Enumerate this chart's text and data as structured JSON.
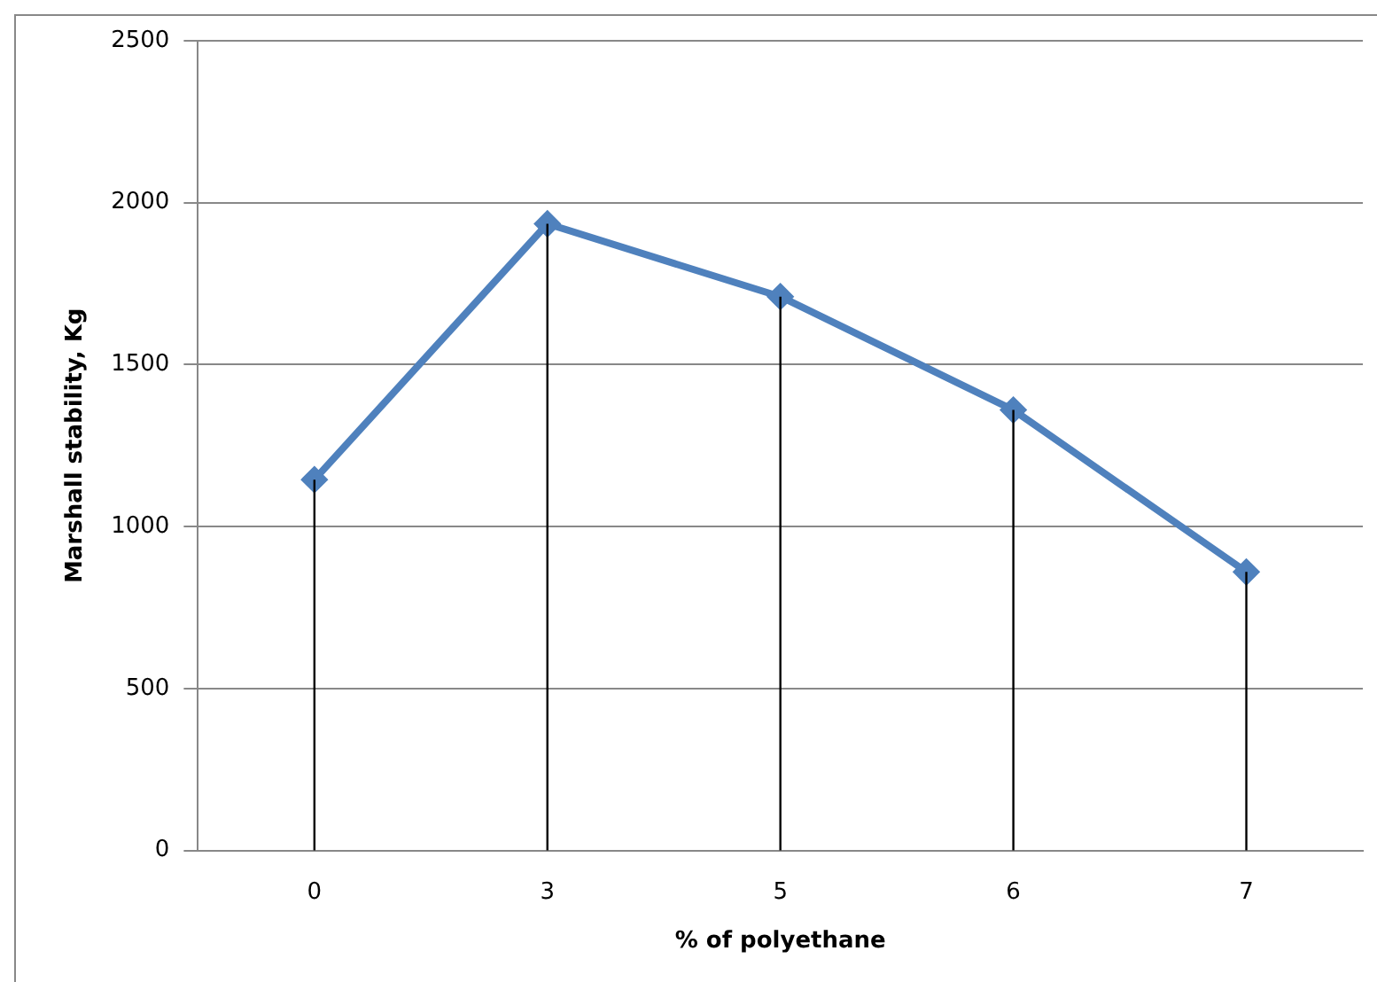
{
  "chart_data": {
    "type": "line",
    "xlabel": "% of polyethane",
    "ylabel": "Marshall stability, Kg",
    "categories": [
      "0",
      "3",
      "5",
      "6",
      "7"
    ],
    "series": [
      {
        "color": "#4f81bd",
        "values": [
          1145,
          1935,
          1710,
          1360,
          860
        ],
        "errors": [
          [
            0,
            1145
          ],
          [
            0,
            1935
          ],
          [
            0,
            1710
          ],
          [
            0,
            1360
          ],
          [
            0,
            860
          ]
        ]
      }
    ],
    "ylim": [
      0,
      2500
    ],
    "yticks": [
      0,
      500,
      1000,
      1500,
      2000,
      2500
    ],
    "grid": "y",
    "legend": false,
    "marker": "diamond",
    "line_style": "solid"
  }
}
